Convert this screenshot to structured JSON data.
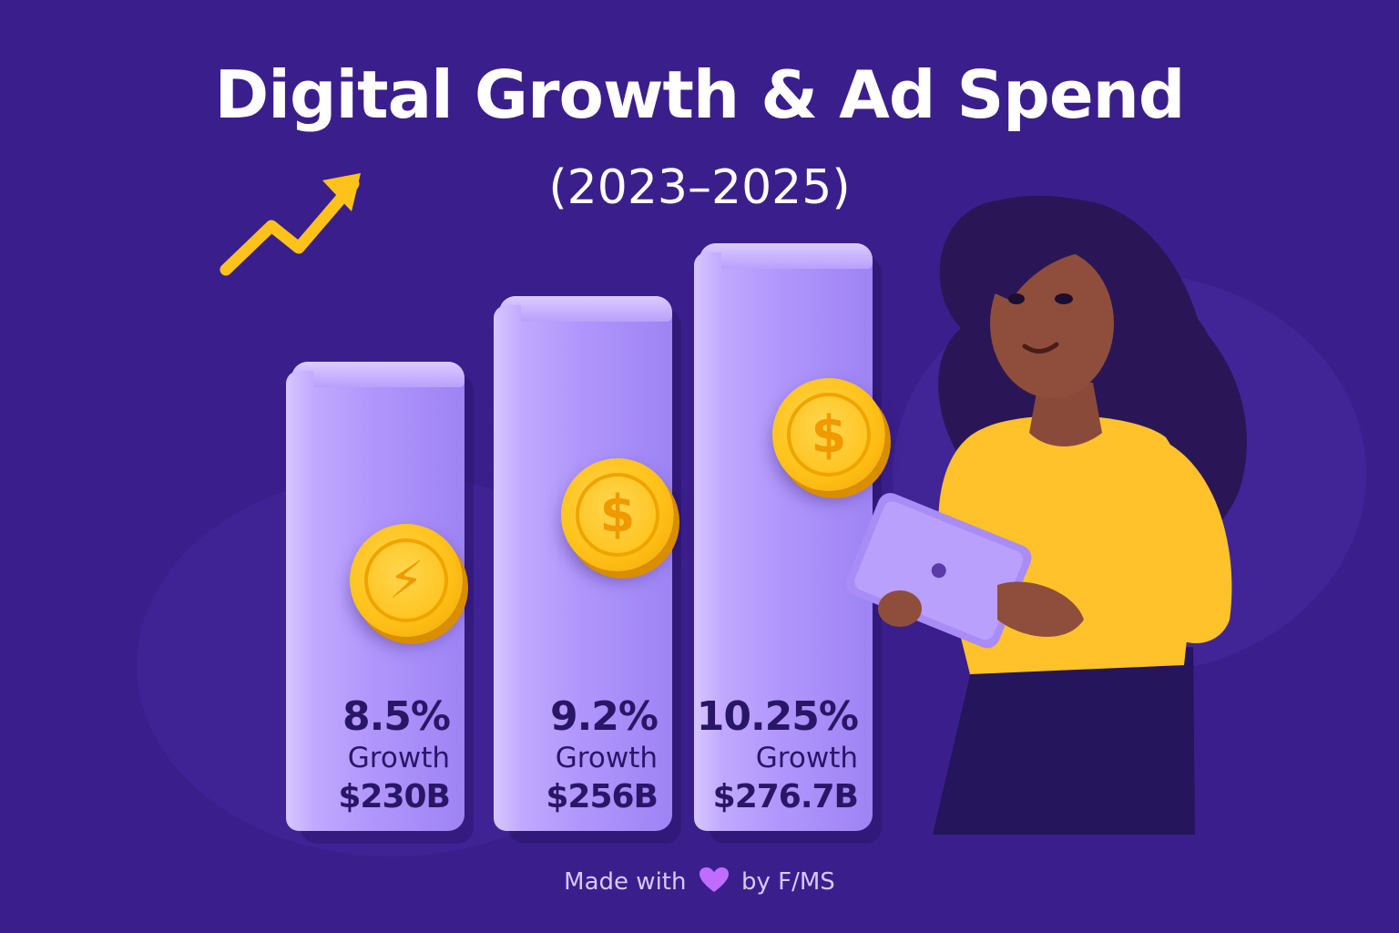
{
  "title": "Digital Growth & Ad Spend",
  "subtitle": "(2023–2025)",
  "colors": {
    "background": "#3a1f8c",
    "bar": "#b197fc",
    "bar_text": "#2a1667",
    "coin": "#ffc21a",
    "trend_arrow": "#ffc21a",
    "shirt": "#ffc22a",
    "heart": "#c06cff"
  },
  "icons": [
    "trend-arrow-icon",
    "lightning-coin-icon",
    "dollar-coin-icon",
    "dollar-coin-icon",
    "heart-icon"
  ],
  "chart_data": {
    "type": "bar",
    "categories": [
      "",
      "",
      ""
    ],
    "series": [
      {
        "values": [
          8.5,
          9.2,
          10.25
        ]
      },
      {
        "values": [
          230,
          256,
          276.7
        ]
      }
    ],
    "title": "Digital Growth & Ad Spend",
    "subtitle": "(2023–2025)",
    "grid": false,
    "bars": [
      {
        "pct": "8.5%",
        "growth": "Growth",
        "amount": "$230B",
        "coin_symbol": "⚡"
      },
      {
        "pct": "9.2%",
        "growth": "Growth",
        "amount": "$256B",
        "coin_symbol": "$"
      },
      {
        "pct": "10.25%",
        "growth": "Growth",
        "amount": "$276.7B",
        "coin_symbol": "$"
      }
    ]
  },
  "footer": {
    "made_with": "Made with",
    "by": "by F/MS"
  }
}
